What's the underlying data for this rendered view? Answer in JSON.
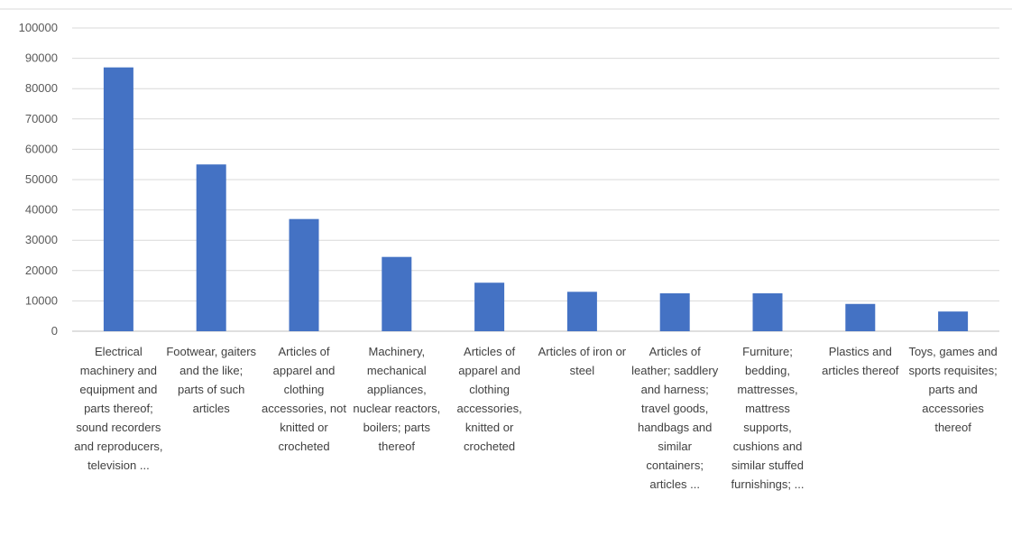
{
  "chart_data": {
    "type": "bar",
    "title": "",
    "xlabel": "",
    "ylabel": "",
    "ylim": [
      0,
      100000
    ],
    "yticks": [
      "0",
      "10000",
      "20000",
      "30000",
      "40000",
      "50000",
      "60000",
      "70000",
      "80000",
      "90000",
      "100000"
    ],
    "grid": true,
    "bar_color": "#4472c4",
    "categories": [
      "Electrical machinery and equipment and parts thereof; sound recorders and reproducers, television ...",
      "Footwear, gaiters and the like; parts of such articles",
      "Articles of apparel and clothing accessories, not knitted or crocheted",
      "Machinery, mechanical appliances, nuclear reactors, boilers; parts thereof",
      "Articles of apparel and clothing accessories, knitted or crocheted",
      "Articles of iron or steel",
      "Articles of leather; saddlery and harness; travel goods, handbags and similar containers; articles ...",
      "Furniture; bedding, mattresses, mattress supports, cushions and similar stuffed furnishings; ...",
      "Plastics and articles thereof",
      "Toys, games and sports requisites; parts and accessories thereof"
    ],
    "values": [
      87000,
      55000,
      37000,
      24500,
      16000,
      13000,
      12500,
      12500,
      9000,
      6500
    ]
  }
}
